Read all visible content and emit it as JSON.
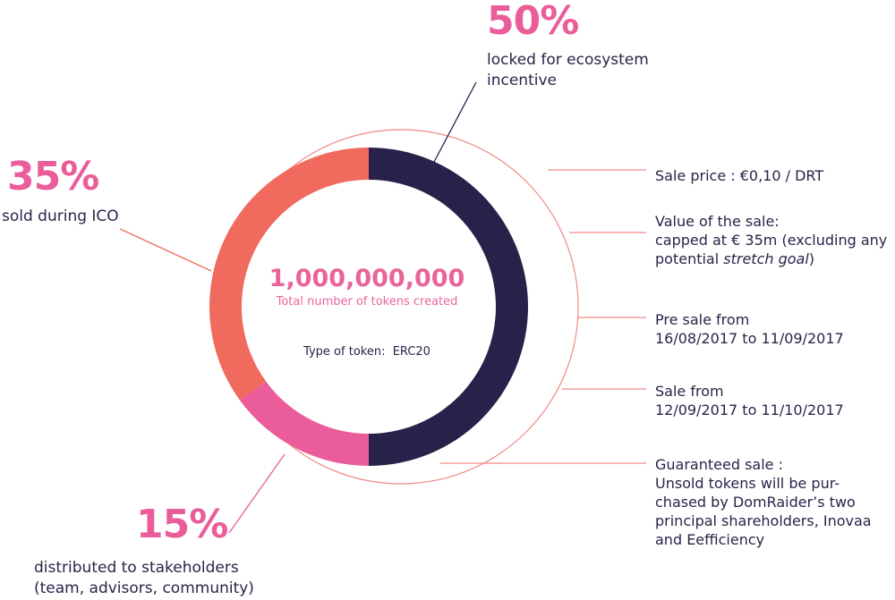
{
  "chart_data": {
    "type": "pie",
    "slices": [
      {
        "value": 50,
        "color": "#28214a",
        "label": "50%",
        "caption": [
          "locked for ecosystem",
          "incentive"
        ]
      },
      {
        "value": 15,
        "color": "#ea5d9a",
        "label": "15%",
        "caption": [
          "distributed to stakeholders",
          "(team, advisors, community)"
        ]
      },
      {
        "value": 35,
        "color": "#f06a5e",
        "label": "35%",
        "caption": [
          "sold during ICO"
        ]
      }
    ],
    "center_value": "1,000,000,000",
    "center_label": "Total number of tokens created",
    "token_type_label": "Type of token:",
    "token_type_value": "ERC20"
  },
  "sale_info": [
    {
      "lines": [
        "Sale price :  €0,10 / DRT"
      ]
    },
    {
      "lines": [
        "Value of the sale:",
        "capped at € 35m (excluding any",
        "potential "
      ],
      "italic": "stretch goal",
      "tail": ")"
    },
    {
      "lines": [
        "Pre sale from",
        "16/08/2017 to 11/09/2017"
      ]
    },
    {
      "lines": [
        "Sale from",
        "12/09/2017 to 11/10/2017"
      ]
    },
    {
      "lines": [
        "Guaranteed sale :",
        "Unsold tokens will be pur-",
        "chased by DomRaider’s two",
        "principal shareholders, Inovaa",
        "and Eefficiency"
      ]
    }
  ],
  "colors": {
    "dark": "#28214a",
    "pink": "#ea5d9a",
    "coral": "#f06a5e",
    "leader": "#f08a85"
  }
}
